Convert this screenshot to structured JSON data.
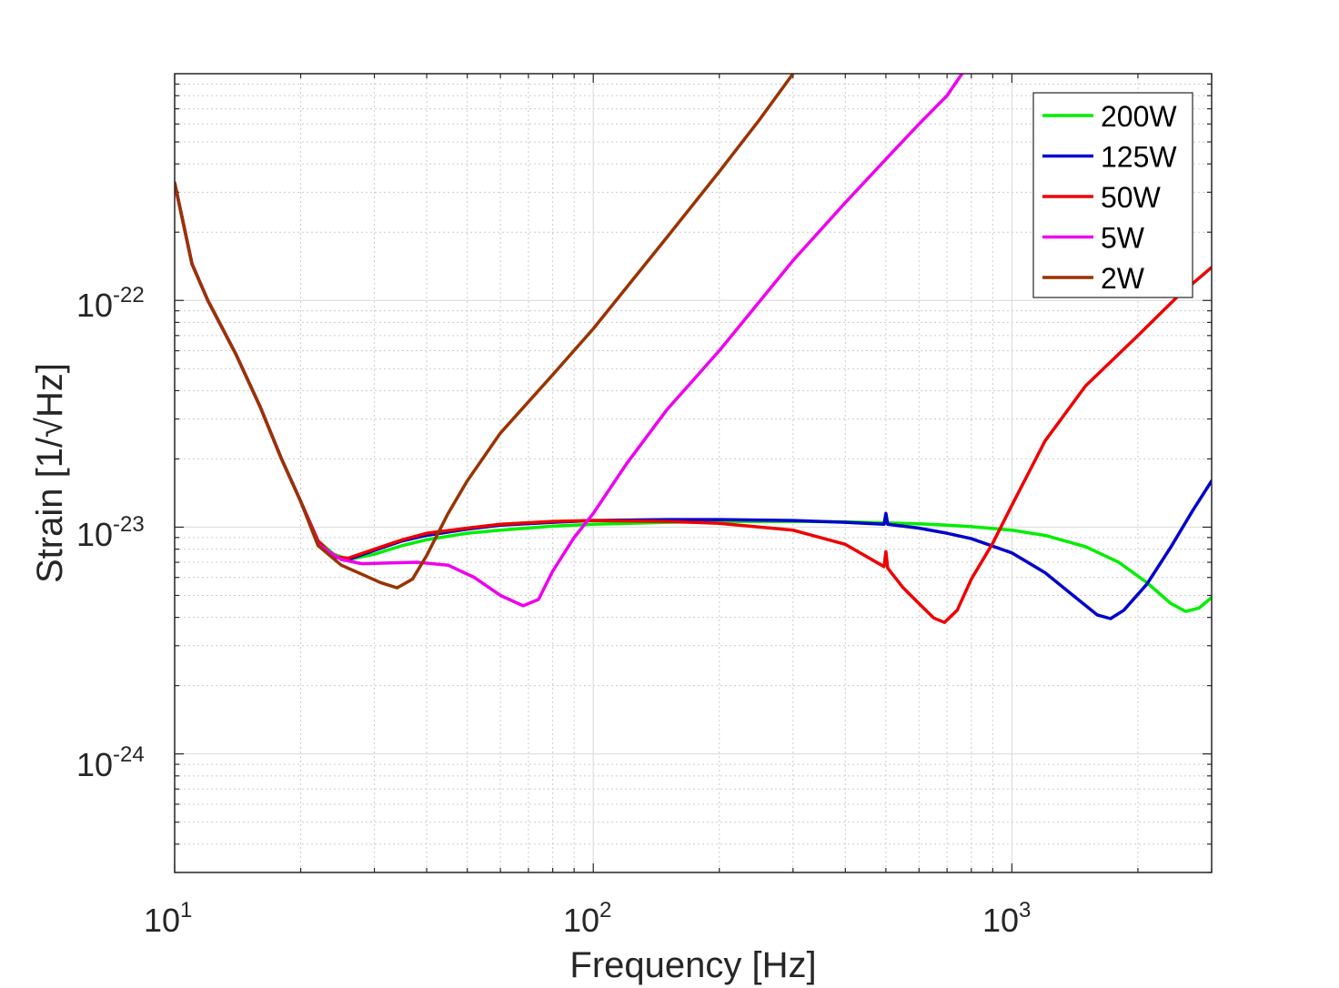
{
  "chart_data": {
    "type": "line",
    "title": "",
    "xlabel": "Frequency [Hz]",
    "ylabel": "Strain [1/√Hz]",
    "xscale": "log",
    "yscale": "log",
    "xlim": [
      10,
      3000
    ],
    "ylim": [
      3e-25,
      1e-21
    ],
    "grid": true,
    "legend_position": "top-right",
    "x_ticks": [
      {
        "value": 10,
        "base": "10",
        "exp": "1"
      },
      {
        "value": 100,
        "base": "10",
        "exp": "2"
      },
      {
        "value": 1000,
        "base": "10",
        "exp": "3"
      }
    ],
    "y_ticks": [
      {
        "value": 1e-24,
        "base": "10",
        "exp": "-24"
      },
      {
        "value": 1e-23,
        "base": "10",
        "exp": "-23"
      },
      {
        "value": 1e-22,
        "base": "10",
        "exp": "-22"
      }
    ],
    "series": [
      {
        "name": "200W",
        "color": "#00ee00",
        "points": [
          [
            10,
            3.3e-22
          ],
          [
            11,
            1.45e-22
          ],
          [
            12,
            1e-22
          ],
          [
            14,
            5.8e-23
          ],
          [
            16,
            3.4e-23
          ],
          [
            18,
            2e-23
          ],
          [
            20,
            1.3e-23
          ],
          [
            22,
            8.7e-24
          ],
          [
            24,
            7.6e-24
          ],
          [
            26,
            7.2e-24
          ],
          [
            30,
            7.6e-24
          ],
          [
            35,
            8.3e-24
          ],
          [
            40,
            8.8e-24
          ],
          [
            50,
            9.4e-24
          ],
          [
            60,
            9.7e-24
          ],
          [
            80,
            1.01e-23
          ],
          [
            100,
            1.03e-23
          ],
          [
            150,
            1.05e-23
          ],
          [
            200,
            1.06e-23
          ],
          [
            300,
            1.06e-23
          ],
          [
            400,
            1.055e-23
          ],
          [
            500,
            1.045e-23
          ],
          [
            600,
            1.035e-23
          ],
          [
            700,
            1.02e-23
          ],
          [
            800,
            1.005e-23
          ],
          [
            1000,
            9.7e-24
          ],
          [
            1200,
            9.2e-24
          ],
          [
            1500,
            8.2e-24
          ],
          [
            1800,
            7e-24
          ],
          [
            2100,
            5.7e-24
          ],
          [
            2400,
            4.6e-24
          ],
          [
            2600,
            4.25e-24
          ],
          [
            2800,
            4.4e-24
          ],
          [
            3000,
            4.9e-24
          ]
        ]
      },
      {
        "name": "125W",
        "color": "#0000cc",
        "points": [
          [
            10,
            3.3e-22
          ],
          [
            11,
            1.45e-22
          ],
          [
            12,
            1e-22
          ],
          [
            14,
            5.8e-23
          ],
          [
            16,
            3.4e-23
          ],
          [
            18,
            2e-23
          ],
          [
            20,
            1.3e-23
          ],
          [
            22,
            8.7e-24
          ],
          [
            24,
            7.4e-24
          ],
          [
            26,
            7.2e-24
          ],
          [
            30,
            7.9e-24
          ],
          [
            35,
            8.7e-24
          ],
          [
            40,
            9.2e-24
          ],
          [
            50,
            9.8e-24
          ],
          [
            60,
            1.02e-23
          ],
          [
            80,
            1.05e-23
          ],
          [
            100,
            1.07e-23
          ],
          [
            150,
            1.08e-23
          ],
          [
            200,
            1.08e-23
          ],
          [
            300,
            1.07e-23
          ],
          [
            400,
            1.05e-23
          ],
          [
            495,
            1.03e-23
          ],
          [
            500,
            1.15e-23
          ],
          [
            505,
            1.03e-23
          ],
          [
            600,
            9.9e-24
          ],
          [
            700,
            9.4e-24
          ],
          [
            800,
            8.9e-24
          ],
          [
            1000,
            7.7e-24
          ],
          [
            1200,
            6.3e-24
          ],
          [
            1400,
            5e-24
          ],
          [
            1600,
            4.1e-24
          ],
          [
            1720,
            3.95e-24
          ],
          [
            1850,
            4.3e-24
          ],
          [
            2100,
            5.6e-24
          ],
          [
            2400,
            8.2e-24
          ],
          [
            2700,
            1.18e-23
          ],
          [
            3000,
            1.6e-23
          ]
        ]
      },
      {
        "name": "50W",
        "color": "#ee0000",
        "points": [
          [
            10,
            3.3e-22
          ],
          [
            11,
            1.45e-22
          ],
          [
            12,
            1e-22
          ],
          [
            14,
            5.8e-23
          ],
          [
            16,
            3.4e-23
          ],
          [
            18,
            2e-23
          ],
          [
            20,
            1.3e-23
          ],
          [
            22,
            8.7e-24
          ],
          [
            24,
            7.4e-24
          ],
          [
            26,
            7.3e-24
          ],
          [
            30,
            8e-24
          ],
          [
            35,
            8.8e-24
          ],
          [
            40,
            9.4e-24
          ],
          [
            50,
            9.9e-24
          ],
          [
            60,
            1.03e-23
          ],
          [
            80,
            1.06e-23
          ],
          [
            100,
            1.07e-23
          ],
          [
            150,
            1.06e-23
          ],
          [
            200,
            1.04e-23
          ],
          [
            300,
            9.7e-24
          ],
          [
            400,
            8.4e-24
          ],
          [
            495,
            6.7e-24
          ],
          [
            500,
            7.8e-24
          ],
          [
            505,
            6.6e-24
          ],
          [
            550,
            5.4e-24
          ],
          [
            600,
            4.6e-24
          ],
          [
            650,
            3.98e-24
          ],
          [
            690,
            3.8e-24
          ],
          [
            740,
            4.3e-24
          ],
          [
            800,
            5.9e-24
          ],
          [
            900,
            8.5e-24
          ],
          [
            1000,
            1.25e-23
          ],
          [
            1200,
            2.4e-23
          ],
          [
            1500,
            4.2e-23
          ],
          [
            2000,
            7e-23
          ],
          [
            2500,
            1.05e-22
          ],
          [
            3000,
            1.4e-22
          ]
        ]
      },
      {
        "name": "5W",
        "color": "#ee00ee",
        "points": [
          [
            10,
            3.3e-22
          ],
          [
            11,
            1.45e-22
          ],
          [
            12,
            1e-22
          ],
          [
            14,
            5.8e-23
          ],
          [
            16,
            3.4e-23
          ],
          [
            18,
            2e-23
          ],
          [
            20,
            1.3e-23
          ],
          [
            22,
            8.4e-24
          ],
          [
            25,
            7.2e-24
          ],
          [
            28,
            6.9e-24
          ],
          [
            32,
            6.95e-24
          ],
          [
            38,
            7e-24
          ],
          [
            45,
            6.8e-24
          ],
          [
            52,
            6e-24
          ],
          [
            60,
            5e-24
          ],
          [
            68,
            4.5e-24
          ],
          [
            74,
            4.8e-24
          ],
          [
            80,
            6.4e-24
          ],
          [
            90,
            9e-24
          ],
          [
            100,
            1.15e-23
          ],
          [
            120,
            1.9e-23
          ],
          [
            150,
            3.3e-23
          ],
          [
            200,
            6e-23
          ],
          [
            300,
            1.5e-22
          ],
          [
            400,
            2.7e-22
          ],
          [
            500,
            4.2e-22
          ],
          [
            600,
            6e-22
          ],
          [
            700,
            8e-22
          ],
          [
            760,
            1e-21
          ]
        ]
      },
      {
        "name": "2W",
        "color": "#993300",
        "points": [
          [
            10,
            3.3e-22
          ],
          [
            11,
            1.45e-22
          ],
          [
            12,
            1e-22
          ],
          [
            14,
            5.8e-23
          ],
          [
            16,
            3.4e-23
          ],
          [
            18,
            2e-23
          ],
          [
            20,
            1.3e-23
          ],
          [
            22,
            8.3e-24
          ],
          [
            25,
            6.8e-24
          ],
          [
            28,
            6.2e-24
          ],
          [
            31,
            5.7e-24
          ],
          [
            34,
            5.4e-24
          ],
          [
            37,
            5.9e-24
          ],
          [
            40,
            7.5e-24
          ],
          [
            45,
            1.15e-23
          ],
          [
            50,
            1.6e-23
          ],
          [
            60,
            2.6e-23
          ],
          [
            80,
            4.7e-23
          ],
          [
            100,
            7.5e-23
          ],
          [
            150,
            1.9e-22
          ],
          [
            200,
            3.7e-22
          ],
          [
            250,
            6.3e-22
          ],
          [
            300,
            1e-21
          ]
        ]
      }
    ]
  }
}
